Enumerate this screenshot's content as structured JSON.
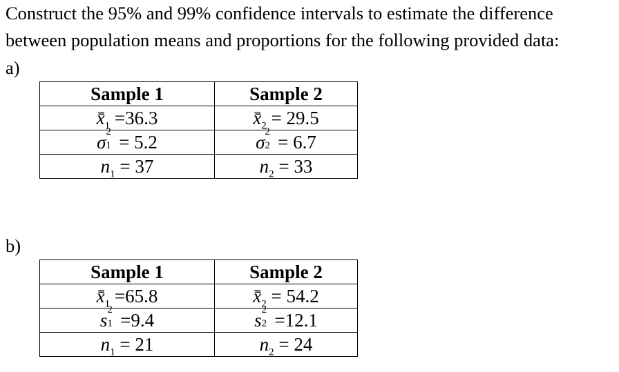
{
  "question": {
    "line1": "Construct the 95% and 99% confidence intervals to estimate the difference",
    "line2": "between population means and proportions for the following provided data:"
  },
  "part_a": {
    "label": "a)",
    "headers": [
      "Sample 1",
      "Sample 2"
    ],
    "rows": [
      {
        "s1": {
          "var": "x̄",
          "sub": "1",
          "sup": "",
          "op": " =",
          "val": "36.3"
        },
        "s2": {
          "var": "x̄",
          "sub": "2",
          "sup": "",
          "op": " = ",
          "val": "29.5"
        }
      },
      {
        "s1": {
          "var": "σ",
          "sub": "1",
          "sup": "2",
          "op": " = ",
          "val": "5.2"
        },
        "s2": {
          "var": "σ",
          "sub": "2",
          "sup": "2",
          "op": " = ",
          "val": "6.7"
        }
      },
      {
        "s1": {
          "var": "n",
          "sub": "1",
          "sup": "",
          "op": " = ",
          "val": "37"
        },
        "s2": {
          "var": "n",
          "sub": "2",
          "sup": "",
          "op": " = ",
          "val": "33"
        }
      }
    ]
  },
  "part_b": {
    "label": "b)",
    "headers": [
      "Sample 1",
      "Sample 2"
    ],
    "rows": [
      {
        "s1": {
          "var": "x̄",
          "sub": "1",
          "sup": "",
          "op": " =",
          "val": "65.8"
        },
        "s2": {
          "var": "x̄",
          "sub": "2",
          "sup": "",
          "op": " = ",
          "val": "54.2"
        }
      },
      {
        "s1": {
          "var": "s",
          "sub": "1",
          "sup": "2",
          "op": " =",
          "val": "9.4"
        },
        "s2": {
          "var": "s",
          "sub": "2",
          "sup": "2",
          "op": " =",
          "val": "12.1"
        }
      },
      {
        "s1": {
          "var": "n",
          "sub": "1",
          "sup": "",
          "op": " = ",
          "val": "21"
        },
        "s2": {
          "var": "n",
          "sub": "2",
          "sup": "",
          "op": " = ",
          "val": "24"
        }
      }
    ]
  }
}
